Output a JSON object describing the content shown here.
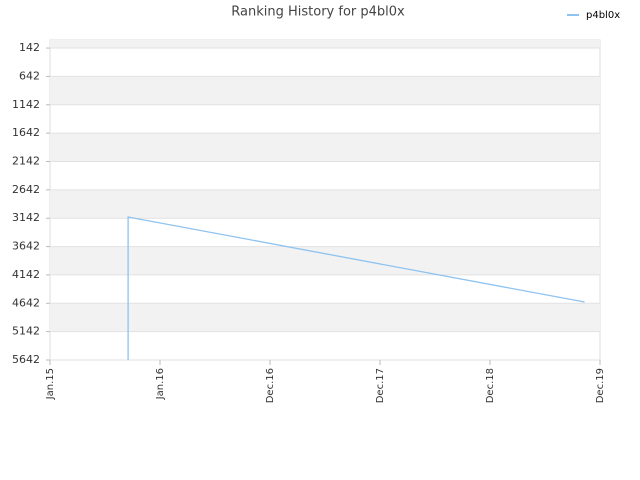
{
  "chart_data": {
    "type": "line",
    "title": "Ranking History for p4bl0x",
    "series": [
      {
        "name": "p4bl0x",
        "color": "#8ec3f0",
        "x": [
          2015.71,
          2015.71,
          2019.86
        ],
        "values": [
          5642,
          3121,
          4620
        ]
      }
    ],
    "xlim": [
      2015,
      2020
    ],
    "xticks": [
      {
        "value": 2015,
        "label": "Jan.15"
      },
      {
        "value": 2016,
        "label": "Jan.16"
      },
      {
        "value": 2017,
        "label": "Dec.16"
      },
      {
        "value": 2018,
        "label": "Dec.17"
      },
      {
        "value": 2019,
        "label": "Dec.18"
      },
      {
        "value": 2020,
        "label": "Dec.19"
      }
    ],
    "ylim": [
      5642,
      0
    ],
    "yticks": [
      142,
      642,
      1142,
      1642,
      2142,
      2642,
      3142,
      3642,
      4142,
      4642,
      5142,
      5642
    ],
    "legend": "top-right",
    "grid": true
  }
}
